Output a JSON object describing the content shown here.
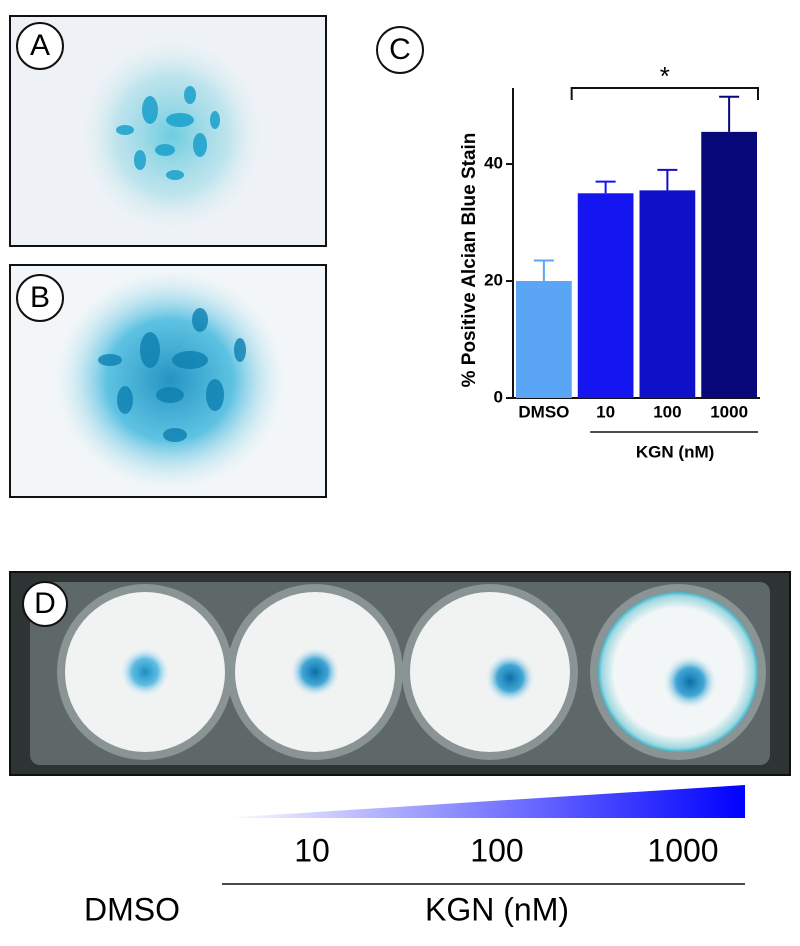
{
  "panel_labels": [
    "A",
    "B",
    "C",
    "D"
  ],
  "chart_data": {
    "type": "bar",
    "ylabel": "% Positive Alcian  Blue Stain",
    "categories": [
      "DMSO",
      "10",
      "100",
      "1000"
    ],
    "values": [
      20,
      35,
      35.5,
      45.5
    ],
    "errors": [
      3.5,
      2,
      3.5,
      6
    ],
    "colors": [
      "#5aa5f5",
      "#1515f0",
      "#1010c8",
      "#08087a"
    ],
    "group_label": "KGN (nM)",
    "annotation": "*",
    "ylim": [
      0,
      53
    ],
    "yticks": [
      0,
      20,
      40
    ]
  },
  "plate": {
    "concentrations": [
      "10",
      "100",
      "1000"
    ],
    "control": "DMSO",
    "group_label": "KGN (nM)"
  }
}
